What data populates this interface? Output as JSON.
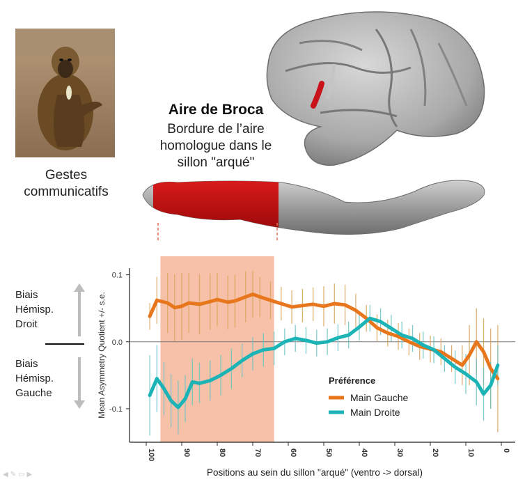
{
  "left_panel": {
    "caption_lines": [
      "Gestes",
      "communicatifs"
    ]
  },
  "broca": {
    "title": "Aire de Broca",
    "desc_lines": [
      "Bordure de l’aire",
      "homologue dans le",
      "sillon \"arqué\""
    ]
  },
  "side_labels": {
    "right": [
      "Biais",
      "Hémisp.",
      "Droit"
    ],
    "left": [
      "Biais",
      "Hémisp.",
      "Gauche"
    ]
  },
  "nav_icons": [
    "prev-icon",
    "pen-icon",
    "menu-icon",
    "next-icon"
  ],
  "chart_data": {
    "type": "line",
    "xlabel": "Positions au sein du sillon \"arqué\" (ventro -> dorsal)",
    "ylabel": "Mean Asymmetry Quotient +/- s.e.",
    "x_reversed": true,
    "xlim": [
      100,
      0
    ],
    "ylim": [
      -0.15,
      0.11
    ],
    "x_ticks": [
      100,
      90,
      80,
      70,
      60,
      50,
      40,
      30,
      20,
      10,
      0
    ],
    "y_ticks": [
      0.1,
      0.0,
      -0.1
    ],
    "y_tick_labels": [
      "0.1",
      "0.0",
      "-0.1"
    ],
    "zero_line": true,
    "highlight_band": {
      "x_from": 96,
      "x_to": 64,
      "color": "#f6c1a8"
    },
    "legend": {
      "title": "Préférence",
      "placement": "bottom-right"
    },
    "series": [
      {
        "name": "Main Gauche",
        "color": "#e8761c",
        "error_color": "#d9a45a",
        "x": [
          99,
          97,
          94,
          92,
          90,
          88,
          85,
          82,
          80,
          77,
          75,
          72,
          70,
          68,
          65,
          62,
          59,
          56,
          53,
          50,
          47,
          44,
          41,
          38,
          35,
          32,
          29,
          26,
          23,
          20,
          17,
          14,
          11,
          9,
          7,
          5,
          3,
          1
        ],
        "y": [
          0.038,
          0.062,
          0.058,
          0.051,
          0.053,
          0.058,
          0.056,
          0.06,
          0.063,
          0.059,
          0.061,
          0.067,
          0.071,
          0.067,
          0.062,
          0.057,
          0.052,
          0.054,
          0.056,
          0.053,
          0.057,
          0.055,
          0.047,
          0.035,
          0.021,
          0.013,
          0.008,
          0.0,
          -0.007,
          -0.011,
          -0.015,
          -0.025,
          -0.035,
          -0.02,
          0.0,
          -0.015,
          -0.04,
          -0.055
        ],
        "error": [
          0.02,
          0.035,
          0.045,
          0.05,
          0.05,
          0.045,
          0.045,
          0.042,
          0.04,
          0.04,
          0.04,
          0.038,
          0.035,
          0.03,
          0.028,
          0.025,
          0.025,
          0.025,
          0.025,
          0.03,
          0.03,
          0.03,
          0.025,
          0.02,
          0.02,
          0.02,
          0.02,
          0.02,
          0.02,
          0.02,
          0.02,
          0.02,
          0.03,
          0.045,
          0.05,
          0.05,
          0.06,
          0.08
        ]
      },
      {
        "name": "Main Droite",
        "color": "#1bb3b5",
        "error_color": "#6ac4c4",
        "x": [
          99,
          97,
          95,
          93,
          91,
          89,
          87,
          85,
          82,
          79,
          76,
          73,
          70,
          67,
          64,
          61,
          58,
          55,
          52,
          49,
          46,
          43,
          40,
          37,
          34,
          31,
          28,
          25,
          22,
          19,
          16,
          13,
          10,
          7,
          5,
          3,
          1
        ],
        "y": [
          -0.08,
          -0.055,
          -0.07,
          -0.088,
          -0.098,
          -0.085,
          -0.06,
          -0.062,
          -0.058,
          -0.05,
          -0.04,
          -0.028,
          -0.018,
          -0.012,
          -0.01,
          0.0,
          0.005,
          0.002,
          -0.002,
          0.0,
          0.006,
          0.01,
          0.022,
          0.035,
          0.03,
          0.02,
          0.01,
          0.005,
          -0.005,
          -0.012,
          -0.025,
          -0.038,
          -0.048,
          -0.06,
          -0.078,
          -0.065,
          -0.035
        ],
        "error": [
          0.06,
          0.05,
          0.04,
          0.04,
          0.04,
          0.035,
          0.035,
          0.03,
          0.03,
          0.03,
          0.03,
          0.025,
          0.025,
          0.025,
          0.025,
          0.02,
          0.02,
          0.02,
          0.02,
          0.02,
          0.02,
          0.02,
          0.02,
          0.02,
          0.02,
          0.02,
          0.02,
          0.02,
          0.02,
          0.02,
          0.02,
          0.025,
          0.03,
          0.035,
          0.04,
          0.035,
          0.03
        ]
      }
    ]
  }
}
